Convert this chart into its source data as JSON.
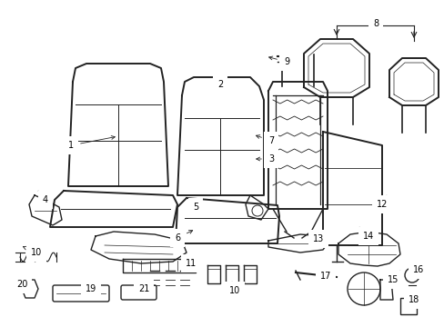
{
  "background_color": "#ffffff",
  "line_color": "#222222",
  "label_color": "#000000",
  "figsize": [
    4.89,
    3.6
  ],
  "dpi": 100,
  "xlim": [
    0,
    489
  ],
  "ylim": [
    360,
    0
  ]
}
